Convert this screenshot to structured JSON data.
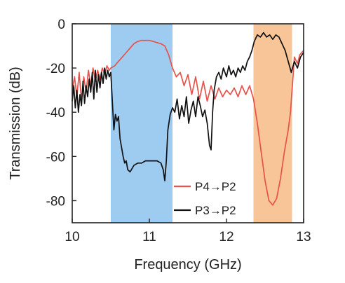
{
  "chart_data": {
    "type": "line",
    "title": "",
    "xlabel": "Frequency (GHz)",
    "ylabel": "Transmission (dB)",
    "xlim": [
      10,
      13
    ],
    "ylim": [
      -90,
      0
    ],
    "xticks": [
      10,
      11,
      12,
      13
    ],
    "xtick_labels": [
      "10",
      "11",
      "12",
      "13"
    ],
    "yticks": [
      0,
      -20,
      -40,
      -60,
      -80
    ],
    "ytick_labels": [
      "0",
      "-20",
      "-40",
      "-60",
      "-80"
    ],
    "grid": false,
    "legend_position": "lower-right",
    "bands": [
      {
        "x0": 10.5,
        "x1": 11.3,
        "color": "#9ecbf0"
      },
      {
        "x0": 12.35,
        "x1": 12.85,
        "color": "#f7c597"
      }
    ],
    "series": [
      {
        "name": "P4→P2",
        "color": "#e8524a",
        "points": [
          [
            10.0,
            -30
          ],
          [
            10.03,
            -24
          ],
          [
            10.06,
            -33
          ],
          [
            10.09,
            -22
          ],
          [
            10.12,
            -35
          ],
          [
            10.15,
            -24
          ],
          [
            10.18,
            -31
          ],
          [
            10.21,
            -21
          ],
          [
            10.24,
            -28
          ],
          [
            10.27,
            -20
          ],
          [
            10.3,
            -26
          ],
          [
            10.33,
            -21
          ],
          [
            10.36,
            -25
          ],
          [
            10.39,
            -20
          ],
          [
            10.42,
            -23
          ],
          [
            10.45,
            -19
          ],
          [
            10.48,
            -21
          ],
          [
            10.5,
            -20
          ],
          [
            10.55,
            -19
          ],
          [
            10.6,
            -17
          ],
          [
            10.65,
            -15
          ],
          [
            10.7,
            -13
          ],
          [
            10.75,
            -11
          ],
          [
            10.8,
            -9
          ],
          [
            10.85,
            -8
          ],
          [
            10.9,
            -7.5
          ],
          [
            10.95,
            -7.5
          ],
          [
            11.0,
            -7.5
          ],
          [
            11.05,
            -8
          ],
          [
            11.1,
            -8.5
          ],
          [
            11.15,
            -9
          ],
          [
            11.2,
            -10
          ],
          [
            11.25,
            -14
          ],
          [
            11.3,
            -20
          ],
          [
            11.35,
            -24
          ],
          [
            11.4,
            -22
          ],
          [
            11.45,
            -28
          ],
          [
            11.5,
            -23
          ],
          [
            11.55,
            -32
          ],
          [
            11.6,
            -24
          ],
          [
            11.65,
            -34
          ],
          [
            11.7,
            -26
          ],
          [
            11.75,
            -35
          ],
          [
            11.8,
            -28
          ],
          [
            11.85,
            -34
          ],
          [
            11.9,
            -29
          ],
          [
            11.95,
            -33
          ],
          [
            12.0,
            -30
          ],
          [
            12.05,
            -32
          ],
          [
            12.1,
            -29
          ],
          [
            12.15,
            -33
          ],
          [
            12.2,
            -28
          ],
          [
            12.25,
            -32
          ],
          [
            12.3,
            -28
          ],
          [
            12.35,
            -34
          ],
          [
            12.4,
            -45
          ],
          [
            12.45,
            -58
          ],
          [
            12.5,
            -71
          ],
          [
            12.55,
            -80
          ],
          [
            12.6,
            -82
          ],
          [
            12.65,
            -79
          ],
          [
            12.7,
            -70
          ],
          [
            12.75,
            -58
          ],
          [
            12.8,
            -48
          ],
          [
            12.83,
            -40
          ],
          [
            12.86,
            -25
          ],
          [
            12.88,
            -15
          ],
          [
            12.92,
            -18
          ],
          [
            12.95,
            -14
          ],
          [
            13.0,
            -12
          ]
        ]
      },
      {
        "name": "P3→P2",
        "color": "#111111",
        "points": [
          [
            10.0,
            -35
          ],
          [
            10.02,
            -28
          ],
          [
            10.04,
            -38
          ],
          [
            10.06,
            -30
          ],
          [
            10.08,
            -40
          ],
          [
            10.1,
            -32
          ],
          [
            10.12,
            -37
          ],
          [
            10.14,
            -26
          ],
          [
            10.16,
            -36
          ],
          [
            10.18,
            -28
          ],
          [
            10.2,
            -33
          ],
          [
            10.22,
            -25
          ],
          [
            10.24,
            -31
          ],
          [
            10.26,
            -22
          ],
          [
            10.28,
            -34
          ],
          [
            10.3,
            -21
          ],
          [
            10.32,
            -31
          ],
          [
            10.34,
            -23
          ],
          [
            10.36,
            -29
          ],
          [
            10.38,
            -22
          ],
          [
            10.4,
            -27
          ],
          [
            10.42,
            -20
          ],
          [
            10.44,
            -25
          ],
          [
            10.46,
            -21
          ],
          [
            10.48,
            -24
          ],
          [
            10.5,
            -22
          ],
          [
            10.52,
            -35
          ],
          [
            10.54,
            -48
          ],
          [
            10.56,
            -41
          ],
          [
            10.58,
            -44
          ],
          [
            10.6,
            -42
          ],
          [
            10.62,
            -52
          ],
          [
            10.64,
            -56
          ],
          [
            10.66,
            -60
          ],
          [
            10.68,
            -63
          ],
          [
            10.7,
            -62
          ],
          [
            10.72,
            -66
          ],
          [
            10.75,
            -67
          ],
          [
            10.8,
            -64
          ],
          [
            10.85,
            -63
          ],
          [
            10.9,
            -63
          ],
          [
            10.95,
            -62
          ],
          [
            11.0,
            -62
          ],
          [
            11.05,
            -62
          ],
          [
            11.1,
            -62
          ],
          [
            11.15,
            -63
          ],
          [
            11.18,
            -66
          ],
          [
            11.2,
            -71
          ],
          [
            11.22,
            -62
          ],
          [
            11.24,
            -48
          ],
          [
            11.27,
            -41
          ],
          [
            11.3,
            -38
          ],
          [
            11.33,
            -40
          ],
          [
            11.36,
            -34
          ],
          [
            11.39,
            -43
          ],
          [
            11.42,
            -37
          ],
          [
            11.45,
            -42
          ],
          [
            11.48,
            -33
          ],
          [
            11.51,
            -45
          ],
          [
            11.54,
            -39
          ],
          [
            11.57,
            -35
          ],
          [
            11.6,
            -42
          ],
          [
            11.63,
            -33
          ],
          [
            11.66,
            -37
          ],
          [
            11.69,
            -42
          ],
          [
            11.72,
            -39
          ],
          [
            11.75,
            -45
          ],
          [
            11.78,
            -55
          ],
          [
            11.8,
            -57
          ],
          [
            11.82,
            -40
          ],
          [
            11.84,
            -30
          ],
          [
            11.87,
            -24
          ],
          [
            11.9,
            -22
          ],
          [
            11.93,
            -25
          ],
          [
            11.96,
            -20
          ],
          [
            12.0,
            -24
          ],
          [
            12.03,
            -19
          ],
          [
            12.06,
            -23
          ],
          [
            12.09,
            -21
          ],
          [
            12.12,
            -24
          ],
          [
            12.15,
            -20
          ],
          [
            12.18,
            -22
          ],
          [
            12.21,
            -19
          ],
          [
            12.24,
            -21
          ],
          [
            12.27,
            -17
          ],
          [
            12.3,
            -15
          ],
          [
            12.33,
            -12
          ],
          [
            12.36,
            -8
          ],
          [
            12.4,
            -5
          ],
          [
            12.44,
            -6
          ],
          [
            12.48,
            -4
          ],
          [
            12.52,
            -6
          ],
          [
            12.56,
            -5
          ],
          [
            12.6,
            -7
          ],
          [
            12.64,
            -5
          ],
          [
            12.68,
            -6
          ],
          [
            12.72,
            -9
          ],
          [
            12.76,
            -12
          ],
          [
            12.8,
            -17
          ],
          [
            12.84,
            -22
          ],
          [
            12.88,
            -17
          ],
          [
            12.92,
            -20
          ],
          [
            12.96,
            -15
          ],
          [
            13.0,
            -13
          ]
        ]
      }
    ]
  }
}
